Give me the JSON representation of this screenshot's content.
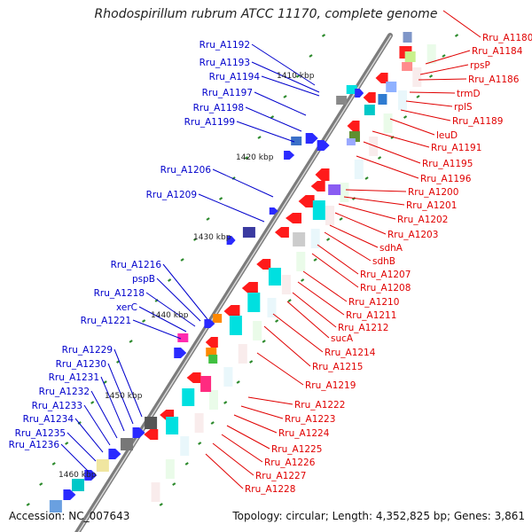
{
  "title": "Rhodospirillum rubrum ATCC 11170, complete genome",
  "footer": {
    "accession": "Accession: NC_007643",
    "summary": "Topology: circular; Length: 4,352,825 bp; Genes: 3,861"
  },
  "colors": {
    "backbone": "#7a7a7a",
    "forward_label": "#0000cc",
    "reverse_label": "#e00000",
    "tick": "#2c8a2c"
  },
  "position_ticks": [
    "1410 kbp",
    "1420 kbp",
    "1430 kbp",
    "1440 kbp",
    "1450 kbp",
    "1460 kbp"
  ],
  "left_labels": [
    "Rru_A1192",
    "Rru_A1193",
    "Rru_A1194",
    "Rru_A1197",
    "Rru_A1198",
    "Rru_A1199",
    "Rru_A1206",
    "Rru_A1209",
    "Rru_A1216",
    "pspB",
    "Rru_A1218",
    "xerC",
    "Rru_A1221",
    "Rru_A1229",
    "Rru_A1230",
    "Rru_A1231",
    "Rru_A1232",
    "Rru_A1233",
    "Rru_A1234",
    "Rru_A1235",
    "Rru_A1236"
  ],
  "right_labels": [
    "Rru_A1180",
    "Rru_A1184",
    "rpsP",
    "Rru_A1186",
    "trmD",
    "rplS",
    "Rru_A1189",
    "leuD",
    "Rru_A1191",
    "Rru_A1195",
    "Rru_A1196",
    "Rru_A1200",
    "Rru_A1201",
    "Rru_A1202",
    "Rru_A1203",
    "sdhA",
    "sdhB",
    "Rru_A1207",
    "Rru_A1208",
    "Rru_A1210",
    "Rru_A1211",
    "Rru_A1212",
    "sucA",
    "Rru_A1214",
    "Rru_A1215",
    "Rru_A1219",
    "Rru_A1222",
    "Rru_A1223",
    "Rru_A1224",
    "Rru_A1225",
    "Rru_A1226",
    "Rru_A1227",
    "Rru_A1228"
  ]
}
